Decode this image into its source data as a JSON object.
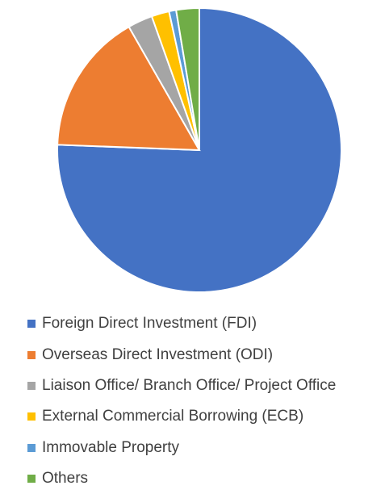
{
  "chart_data": {
    "type": "pie",
    "title": "",
    "categories": [
      "Foreign Direct Investment (FDI)",
      "Overseas Direct Investment (ODI)",
      "Liaison Office/ Branch Office/ Project Office",
      "External Commercial Borrowing (ECB)",
      "Immovable Property",
      "Others"
    ],
    "values": [
      75.0,
      16.0,
      2.8,
      2.0,
      0.8,
      2.6
    ],
    "value_unit": "percent (estimated from slice angles)",
    "colors": [
      "#4472C4",
      "#ED7D31",
      "#A5A5A5",
      "#FFC000",
      "#5B9BD5",
      "#70AD47"
    ],
    "legend_position": "bottom",
    "start_angle": "12 o'clock, clockwise"
  }
}
